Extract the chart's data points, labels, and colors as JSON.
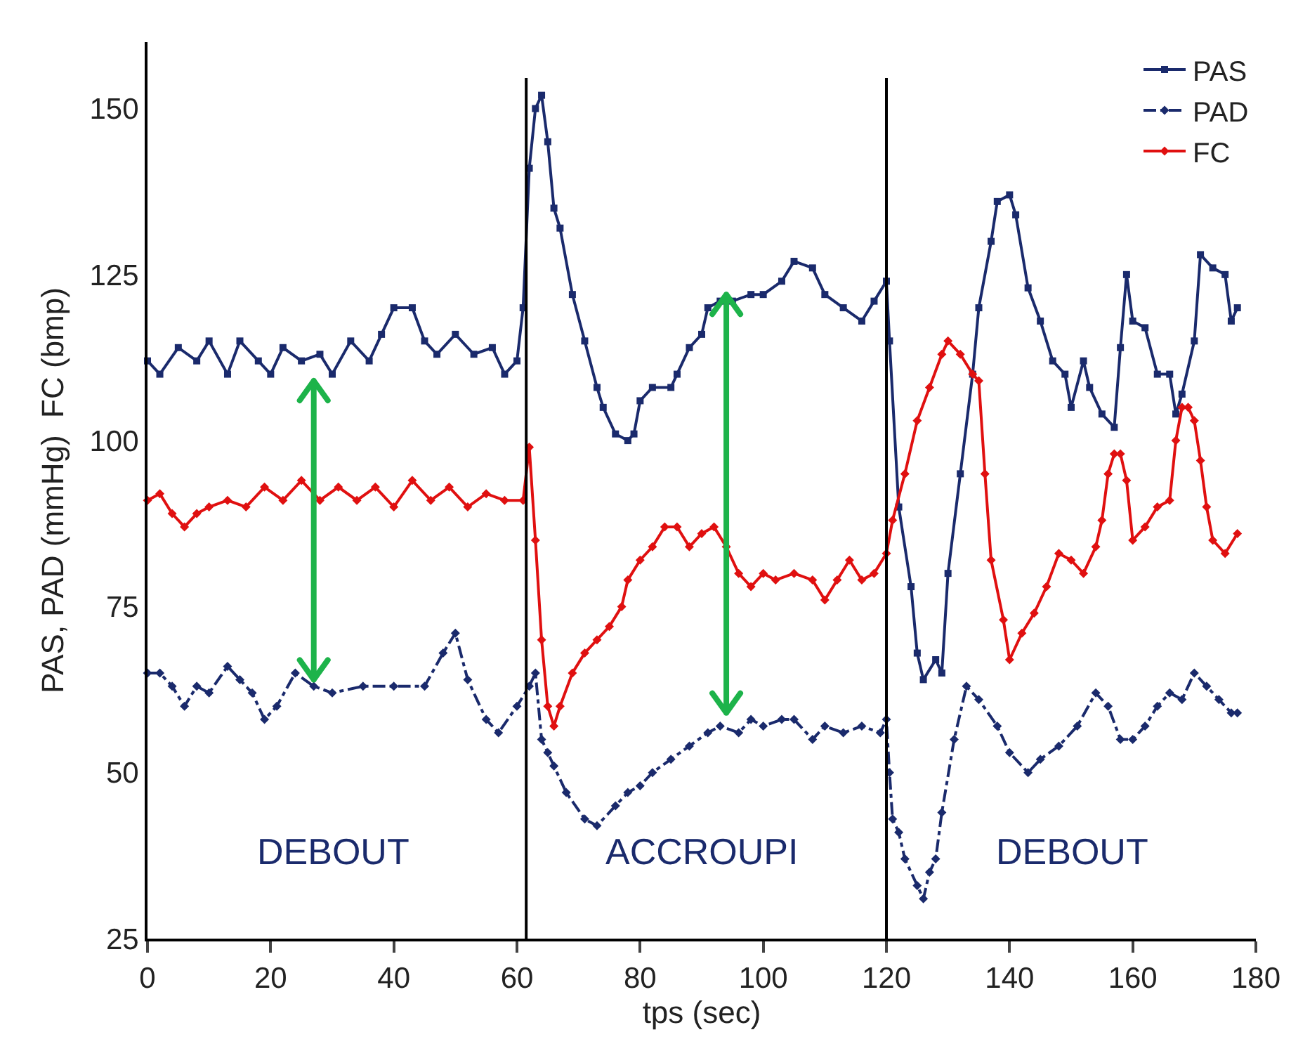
{
  "chart_data": {
    "type": "line",
    "xlabel": "tps (sec)",
    "ylabel": "PAS, PAD (mmHg)  FC (bmp)",
    "xlim": [
      0,
      180
    ],
    "ylim": [
      25,
      160
    ],
    "xticks": [
      0,
      20,
      40,
      60,
      80,
      100,
      120,
      140,
      160,
      180
    ],
    "yticks": [
      25,
      50,
      75,
      100,
      125,
      150
    ],
    "grid": false,
    "legend": "top right",
    "series": [
      {
        "name": "PAS",
        "color": "#1a2a6c",
        "marker": "square",
        "line_style": "solid",
        "x": [
          0,
          2,
          5,
          8,
          10,
          13,
          15,
          18,
          20,
          22,
          25,
          28,
          30,
          33,
          36,
          38,
          40,
          43,
          45,
          47,
          50,
          53,
          56,
          58,
          60,
          61,
          62,
          63,
          64,
          65,
          66,
          67,
          69,
          71,
          73,
          74,
          76,
          78,
          79,
          80,
          82,
          85,
          86,
          88,
          90,
          91,
          93,
          95,
          98,
          100,
          103,
          105,
          108,
          110,
          113,
          116,
          118,
          120,
          120.5,
          122,
          124,
          125,
          126,
          128,
          129,
          130,
          132,
          134,
          135,
          137,
          138,
          140,
          141,
          143,
          145,
          147,
          149,
          150,
          152,
          153,
          155,
          157,
          158,
          159,
          160,
          162,
          164,
          166,
          167,
          168,
          170,
          171,
          173,
          175,
          176,
          177
        ],
        "values": [
          112,
          110,
          114,
          112,
          115,
          110,
          115,
          112,
          110,
          114,
          112,
          113,
          110,
          115,
          112,
          116,
          120,
          120,
          115,
          113,
          116,
          113,
          114,
          110,
          112,
          120,
          141,
          150,
          152,
          145,
          135,
          132,
          122,
          115,
          108,
          105,
          101,
          100,
          101,
          106,
          108,
          108,
          110,
          114,
          116,
          120,
          121,
          121,
          122,
          122,
          124,
          127,
          126,
          122,
          120,
          118,
          121,
          124,
          115,
          90,
          78,
          68,
          64,
          67,
          65,
          80,
          95,
          110,
          120,
          130,
          136,
          137,
          134,
          123,
          118,
          112,
          110,
          105,
          112,
          108,
          104,
          102,
          114,
          125,
          118,
          117,
          110,
          110,
          104,
          107,
          115,
          128,
          126,
          125,
          118,
          120
        ]
      },
      {
        "name": "PAD",
        "color": "#1a2a6c",
        "marker": "diamond",
        "line_style": "dashed",
        "x": [
          0,
          2,
          4,
          6,
          8,
          10,
          13,
          15,
          17,
          19,
          21,
          24,
          27,
          30,
          35,
          40,
          45,
          48,
          50,
          52,
          55,
          57,
          60,
          62,
          63,
          64,
          65,
          66,
          68,
          71,
          73,
          76,
          78,
          80,
          82,
          85,
          88,
          91,
          93,
          96,
          98,
          100,
          103,
          105,
          108,
          110,
          113,
          116,
          119,
          120,
          120.5,
          121,
          122,
          123,
          125,
          126,
          127,
          128,
          129,
          131,
          133,
          135,
          138,
          140,
          143,
          145,
          148,
          151,
          154,
          156,
          158,
          160,
          162,
          164,
          166,
          168,
          170,
          172,
          174,
          176,
          177
        ],
        "values": [
          65,
          65,
          63,
          60,
          63,
          62,
          66,
          64,
          62,
          58,
          60,
          65,
          63,
          62,
          63,
          63,
          63,
          68,
          71,
          64,
          58,
          56,
          60,
          63,
          65,
          55,
          53,
          51,
          47,
          43,
          42,
          45,
          47,
          48,
          50,
          52,
          54,
          56,
          57,
          56,
          58,
          57,
          58,
          58,
          55,
          57,
          56,
          57,
          56,
          58,
          50,
          43,
          41,
          37,
          33,
          31,
          35,
          37,
          44,
          55,
          63,
          61,
          57,
          53,
          50,
          52,
          54,
          57,
          62,
          60,
          55,
          55,
          57,
          60,
          62,
          61,
          65,
          63,
          61,
          59,
          59
        ]
      },
      {
        "name": "FC",
        "color": "#e01010",
        "marker": "diamond",
        "line_style": "solid",
        "x": [
          0,
          2,
          4,
          6,
          8,
          10,
          13,
          16,
          19,
          22,
          25,
          28,
          31,
          34,
          37,
          40,
          43,
          46,
          49,
          52,
          55,
          58,
          61,
          62,
          63,
          64,
          65,
          66,
          67,
          69,
          71,
          73,
          75,
          77,
          78,
          80,
          82,
          84,
          86,
          88,
          90,
          92,
          94,
          96,
          98,
          100,
          102,
          105,
          108,
          110,
          112,
          114,
          116,
          118,
          120,
          121,
          123,
          125,
          127,
          129,
          130,
          132,
          134,
          135,
          136,
          137,
          139,
          140,
          142,
          144,
          146,
          148,
          150,
          152,
          154,
          155,
          156,
          157,
          158,
          159,
          160,
          162,
          164,
          166,
          167,
          168,
          169,
          170,
          171,
          172,
          173,
          175,
          177
        ],
        "values": [
          91,
          92,
          89,
          87,
          89,
          90,
          91,
          90,
          93,
          91,
          94,
          91,
          93,
          91,
          93,
          90,
          94,
          91,
          93,
          90,
          92,
          91,
          91,
          99,
          85,
          70,
          60,
          57,
          60,
          65,
          68,
          70,
          72,
          75,
          79,
          82,
          84,
          87,
          87,
          84,
          86,
          87,
          84,
          80,
          78,
          80,
          79,
          80,
          79,
          76,
          79,
          82,
          79,
          80,
          83,
          88,
          95,
          103,
          108,
          113,
          115,
          113,
          110,
          109,
          95,
          82,
          73,
          67,
          71,
          74,
          78,
          83,
          82,
          80,
          84,
          88,
          95,
          98,
          98,
          94,
          85,
          87,
          90,
          91,
          100,
          105,
          105,
          103,
          97,
          90,
          85,
          83,
          86
        ]
      }
    ],
    "ref_lines": [
      {
        "axis": "x",
        "value": 61.5,
        "color": "#000000"
      },
      {
        "axis": "x",
        "value": 120,
        "color": "#000000"
      }
    ],
    "annotations": [
      "DEBOUT",
      "ACCROUPI",
      "DEBOUT"
    ]
  }
}
